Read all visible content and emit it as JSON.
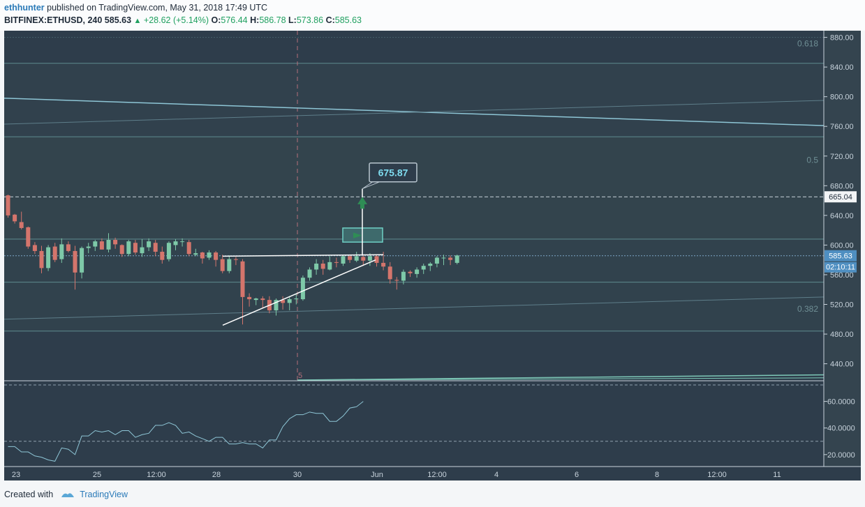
{
  "header": {
    "author": "ethhunter",
    "published_text": "published on TradingView.com, May 31, 2018 17:49 UTC",
    "symbol": "BITFINEX:ETHUSD, 240",
    "last": "585.63",
    "change": "+28.62 (+5.14%)",
    "o_label": "O:",
    "o": "576.44",
    "h_label": "H:",
    "h": "586.78",
    "l_label": "L:",
    "l": "573.86",
    "c_label": "C:",
    "c": "585.63"
  },
  "footer": {
    "created_with": "Created with",
    "brand": "TradingView"
  },
  "colors": {
    "background": "#2e3d4b",
    "up": "#7ec9a8",
    "down": "#d4756c",
    "line": "#8ec6d6",
    "axis_text": "#c8d3dc"
  },
  "chart_data": [
    {
      "type": "candlestick",
      "title": "BITFINEX:ETHUSD, 240",
      "x_ticks": [
        "23",
        "25",
        "12:00",
        "28",
        "30",
        "Jun",
        "12:00",
        "4",
        "6",
        "8",
        "12:00",
        "11"
      ],
      "y_ticks": [
        "440.00",
        "480.00",
        "520.00",
        "560.00",
        "600.00",
        "640.00",
        "680.00",
        "720.00",
        "760.00",
        "800.00",
        "840.00",
        "880.00"
      ],
      "ylim": [
        418,
        889
      ],
      "grid": true,
      "candles": [
        [
          667,
          668,
          637,
          640
        ],
        [
          641,
          642,
          629,
          632
        ],
        [
          631,
          645,
          621,
          623
        ],
        [
          624,
          625,
          595,
          598
        ],
        [
          600,
          604,
          588,
          592
        ],
        [
          592,
          599,
          562,
          569
        ],
        [
          569,
          600,
          565,
          597
        ],
        [
          598,
          603,
          577,
          580
        ],
        [
          581,
          609,
          576,
          601
        ],
        [
          601,
          605,
          590,
          592
        ],
        [
          592,
          599,
          540,
          563
        ],
        [
          563,
          598,
          555,
          596
        ],
        [
          596,
          603,
          589,
          598
        ],
        [
          598,
          607,
          592,
          605
        ],
        [
          605,
          609,
          594,
          594
        ],
        [
          594,
          616,
          590,
          607
        ],
        [
          607,
          610,
          595,
          601
        ],
        [
          600,
          601,
          584,
          588
        ],
        [
          588,
          607,
          585,
          605
        ],
        [
          603,
          607,
          587,
          590
        ],
        [
          589,
          608,
          584,
          597
        ],
        [
          597,
          609,
          592,
          605
        ],
        [
          603,
          607,
          585,
          591
        ],
        [
          591,
          598,
          575,
          580
        ],
        [
          581,
          605,
          578,
          603
        ],
        [
          600,
          608,
          593,
          605
        ],
        [
          605,
          609,
          598,
          605
        ],
        [
          604,
          607,
          585,
          588
        ],
        [
          587,
          595,
          585,
          589
        ],
        [
          590,
          591,
          575,
          582
        ],
        [
          583,
          593,
          580,
          590
        ],
        [
          590,
          592,
          571,
          580
        ],
        [
          581,
          587,
          562,
          565
        ],
        [
          565,
          586,
          562,
          581
        ],
        [
          581,
          584,
          573,
          580
        ],
        [
          578,
          581,
          493,
          530
        ],
        [
          530,
          535,
          517,
          527
        ],
        [
          526,
          529,
          519,
          528
        ],
        [
          528,
          531,
          515,
          526
        ],
        [
          526,
          531,
          508,
          512
        ],
        [
          512,
          528,
          505,
          526
        ],
        [
          526,
          531,
          513,
          522
        ],
        [
          522,
          531,
          512,
          527
        ],
        [
          527,
          534,
          520,
          528
        ],
        [
          527,
          559,
          525,
          556
        ],
        [
          556,
          570,
          552,
          567
        ],
        [
          567,
          581,
          560,
          575
        ],
        [
          575,
          580,
          560,
          568
        ],
        [
          567,
          585,
          566,
          577
        ],
        [
          577,
          583,
          570,
          576
        ],
        [
          575,
          587,
          572,
          585
        ],
        [
          585,
          587,
          576,
          580
        ],
        [
          579,
          591,
          577,
          585
        ],
        [
          584,
          587,
          572,
          579
        ],
        [
          579,
          589,
          572,
          585
        ],
        [
          585,
          587,
          571,
          576
        ],
        [
          576,
          591,
          566,
          571
        ],
        [
          571,
          577,
          548,
          554
        ],
        [
          553,
          557,
          540,
          552
        ],
        [
          552,
          567,
          547,
          564
        ],
        [
          564,
          566,
          557,
          562
        ],
        [
          561,
          570,
          556,
          567
        ],
        [
          567,
          575,
          561,
          572
        ],
        [
          572,
          577,
          565,
          575
        ],
        [
          575,
          585,
          570,
          583
        ],
        [
          583,
          587,
          573,
          583
        ],
        [
          583,
          586,
          573,
          580
        ],
        [
          576,
          587,
          574,
          586
        ]
      ],
      "annotations": [
        {
          "type": "price_label",
          "text": "675.87",
          "value": 675.87
        },
        {
          "type": "axis_label",
          "text": "665.04",
          "value": 665.04
        },
        {
          "type": "axis_label",
          "text": "585.63",
          "value": 585.63
        },
        {
          "type": "countdown",
          "text": "02:10:11"
        },
        {
          "type": "fib_label",
          "text": "0.618"
        },
        {
          "type": "fib_label",
          "text": "0.5"
        },
        {
          "type": "fib_label",
          "text": "0.382"
        },
        {
          "type": "marker",
          "text": "5"
        }
      ],
      "fib_levels": [
        845,
        746,
        608,
        550,
        484
      ],
      "horizontal_dashed": [
        665.04,
        585.63
      ]
    },
    {
      "type": "line",
      "title": "",
      "y_ticks": [
        "20.0000",
        "40.0000",
        "60.0000"
      ],
      "ylim": [
        11,
        75
      ],
      "reference_level": 30,
      "values": [
        26,
        26,
        22,
        22,
        19,
        18,
        16,
        15,
        25,
        24,
        20,
        34,
        34,
        38,
        37,
        38,
        35,
        38,
        38,
        33,
        35,
        36,
        42,
        42,
        44,
        42,
        36,
        37,
        34,
        32,
        30,
        33,
        33,
        28,
        28,
        29,
        28,
        28,
        25,
        31,
        31,
        41,
        47,
        50,
        50,
        52,
        51,
        51,
        45,
        45,
        49,
        55,
        56,
        60
      ]
    }
  ]
}
